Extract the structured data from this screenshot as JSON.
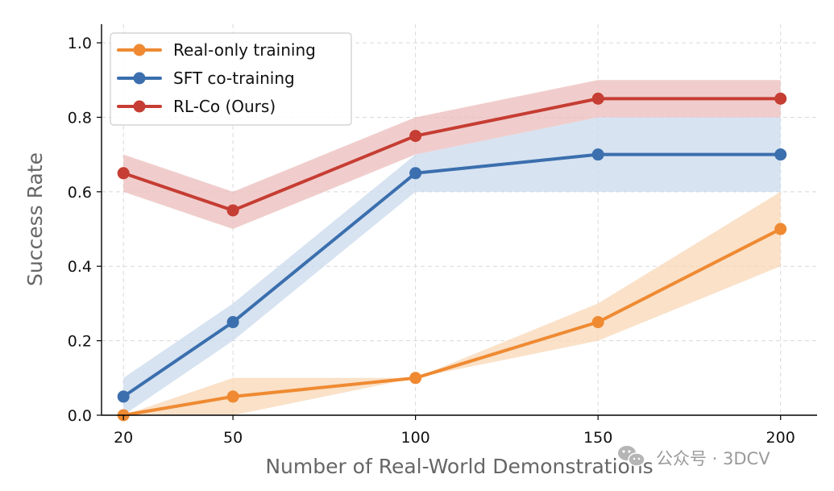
{
  "chart_data": {
    "type": "line",
    "title": "",
    "xlabel": "Number of Real-World Demonstrations",
    "ylabel": "Success Rate",
    "x": [
      20,
      50,
      100,
      150,
      200
    ],
    "xticks": [
      "20",
      "50",
      "100",
      "150",
      "200"
    ],
    "yticks": [
      "0.0",
      "0.2",
      "0.4",
      "0.6",
      "0.8",
      "1.0"
    ],
    "xlim": [
      14,
      210
    ],
    "ylim": [
      0,
      1.05
    ],
    "grid": true,
    "legend_position": "top-left",
    "series": [
      {
        "name": "Real-only training",
        "color": "#ef8a32",
        "band_color": "#f8d7b6",
        "values": [
          0.0,
          0.05,
          0.1,
          0.25,
          0.5
        ],
        "lower": [
          0.0,
          0.0,
          0.1,
          0.2,
          0.4
        ],
        "upper": [
          0.0,
          0.1,
          0.1,
          0.3,
          0.6
        ]
      },
      {
        "name": "SFT co-training",
        "color": "#3b6fae",
        "band_color": "#c9d9ec",
        "values": [
          0.05,
          0.25,
          0.65,
          0.7,
          0.7
        ],
        "lower": [
          0.0,
          0.2,
          0.6,
          0.6,
          0.6
        ],
        "upper": [
          0.1,
          0.3,
          0.7,
          0.8,
          0.8
        ]
      },
      {
        "name": "RL-Co (Ours)",
        "color": "#c63d33",
        "band_color": "#ebbcbb",
        "values": [
          0.65,
          0.55,
          0.75,
          0.85,
          0.85
        ],
        "lower": [
          0.6,
          0.5,
          0.7,
          0.8,
          0.8
        ],
        "upper": [
          0.7,
          0.6,
          0.8,
          0.9,
          0.9
        ]
      }
    ]
  },
  "watermark": {
    "icon": "wechat-icon",
    "text": "公众号 · 3DCV"
  }
}
